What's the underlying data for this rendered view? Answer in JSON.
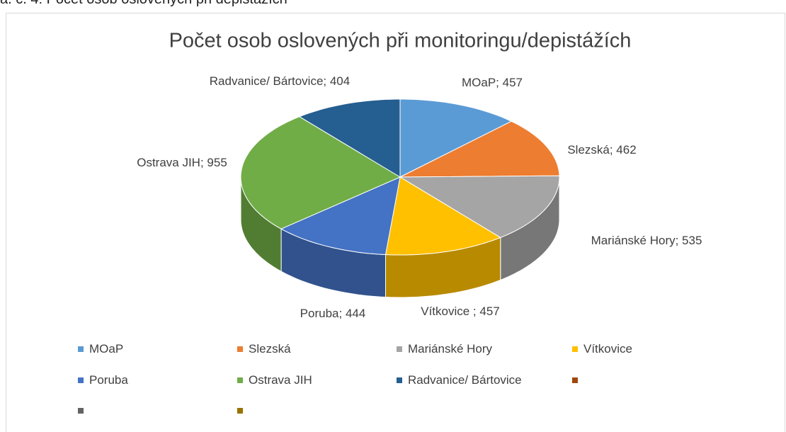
{
  "caption": "a. č. 4: Počet osob oslovených při depistážích",
  "chart_data": {
    "type": "pie3d",
    "title": "Počet osob oslovených při monitoringu/depistážích",
    "categories": [
      "MOaP",
      "Slezská",
      "Mariánské Hory",
      "Vítkovice",
      "Poruba",
      "Ostrava JIH",
      "Radvanice/ Bártovice",
      null,
      null,
      null
    ],
    "values": [
      457,
      462,
      535,
      457,
      444,
      955,
      404,
      null,
      null,
      null
    ],
    "value_labels": [
      "MOaP; 457",
      "Slezská; 462",
      "Mariánské Hory; 535",
      "Vítkovice ; 457",
      "Poruba; 444",
      "Ostrava JIH; 955",
      "Radvanice/ Bártovice; 404",
      null,
      null,
      null
    ],
    "colors": [
      "#5b9bd5",
      "#ed7d31",
      "#a5a5a5",
      "#ffc000",
      "#4472c4",
      "#70ad47",
      "#255e91",
      "#9e480e",
      "#636363",
      "#997300"
    ],
    "legend": "bottom"
  }
}
